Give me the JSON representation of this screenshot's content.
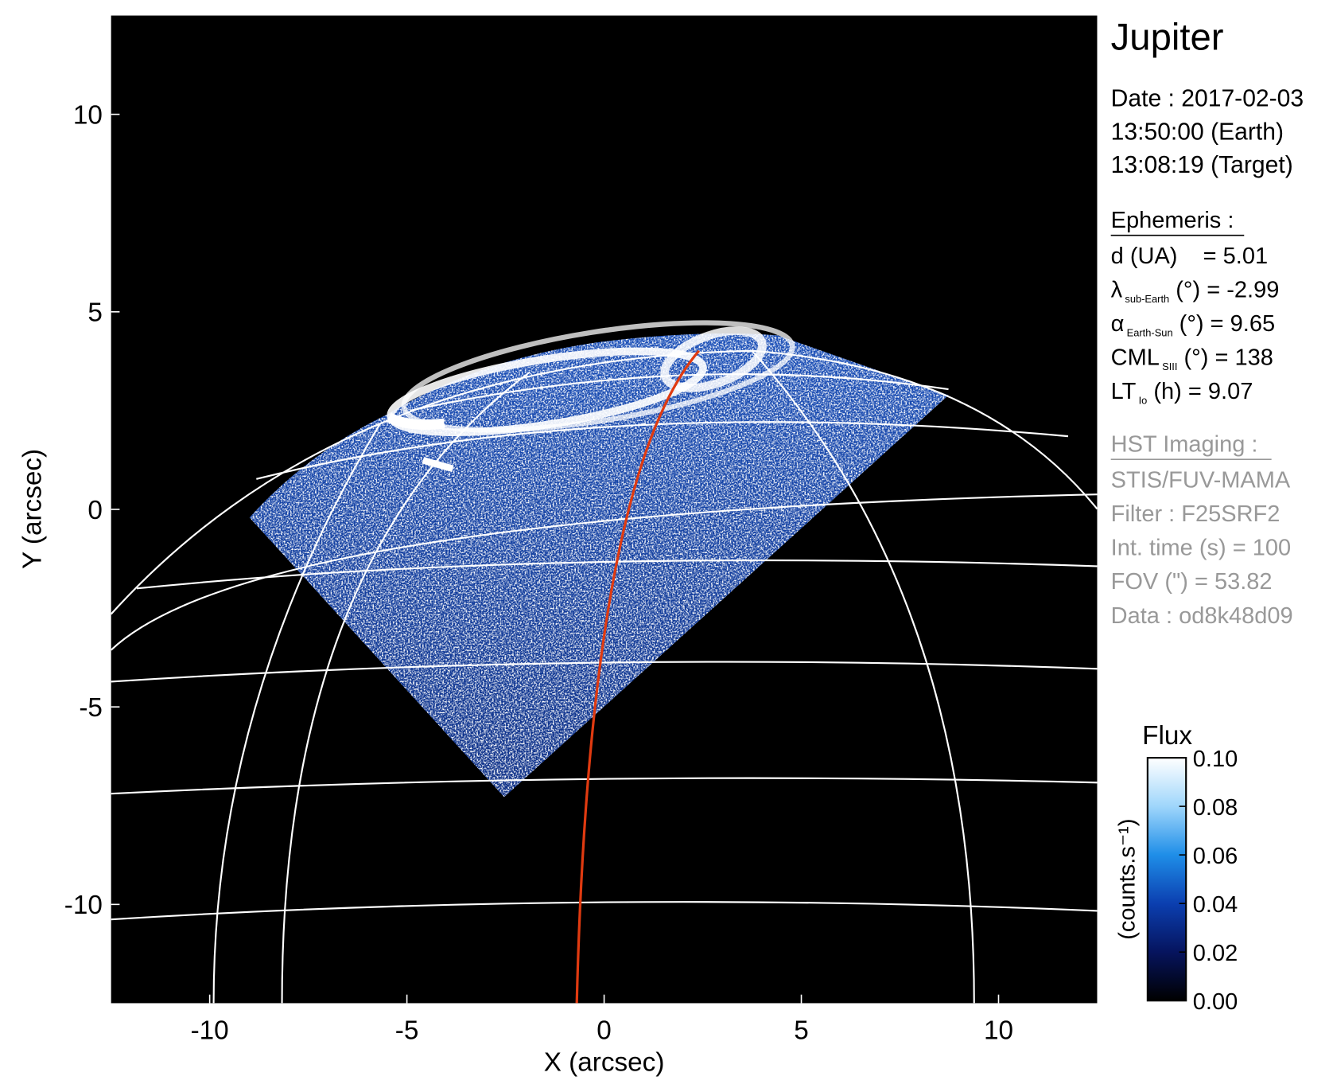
{
  "chart_data": {
    "type": "image",
    "xlabel": "X (arcsec)",
    "ylabel": "Y (arcsec)",
    "xlim": [
      -12.5,
      12.5
    ],
    "ylim": [
      -12.5,
      12.5
    ],
    "xticks": [
      -10,
      -5,
      0,
      5,
      10
    ],
    "yticks": [
      -10,
      -5,
      0,
      5,
      10
    ],
    "colorbar": {
      "title": "Flux",
      "label": "(counts.s⁻¹)",
      "clim": [
        0,
        0.1
      ],
      "colormap": [
        "#000000",
        "#06145e",
        "#0b3fb0",
        "#1f8ee8",
        "#9fd6fb",
        "#ffffff"
      ],
      "ticks": [
        {
          "value": 0,
          "label": "0.00"
        },
        {
          "value": 0.02,
          "label": "0.02"
        },
        {
          "value": 0.04,
          "label": "0.04"
        },
        {
          "value": 0.06,
          "label": "0.06"
        },
        {
          "value": 0.08,
          "label": "0.08"
        },
        {
          "value": 0.1,
          "label": "0.10"
        }
      ]
    }
  },
  "panel": {
    "title": "Jupiter",
    "date_lines": [
      "Date : 2017-02-03",
      "13:50:00 (Earth)",
      "13:08:19 (Target)"
    ],
    "ephemeris_heading": "Ephemeris :",
    "ephemeris": [
      {
        "main": "d (UA)    = 5.01"
      },
      {
        "main": "λ",
        "sub": "sub-Earth",
        "rest": " (°) = -2.99"
      },
      {
        "main": "α",
        "sub": "Earth-Sun",
        "rest": " (°) = 9.65"
      },
      {
        "main": "CML",
        "sub": "SIII",
        "rest": " (°) = 138"
      },
      {
        "main": "LT",
        "sub": "Io",
        "rest": " (h) = 9.07"
      }
    ],
    "hst_heading": "HST Imaging :",
    "hst_lines": [
      "STIS/FUV-MAMA",
      "Filter : F25SRF2",
      "Int. time (s) = 100",
      "FOV (\") = 53.82",
      "Data : od8k48d09"
    ]
  }
}
